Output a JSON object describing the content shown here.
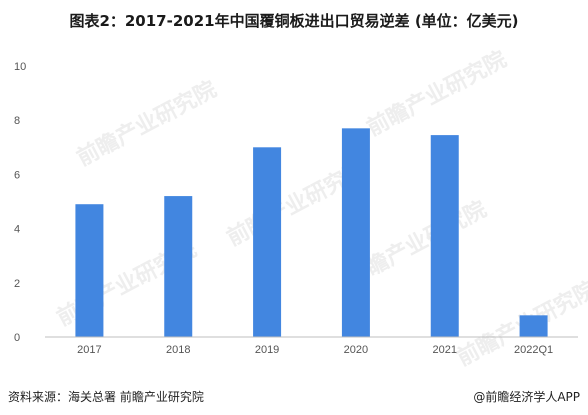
{
  "title": "图表2：2017-2021年中国覆铜板进出口贸易逆差 (单位：亿美元)",
  "footer": {
    "source": "资料来源：海关总署 前瞻产业研究院",
    "brand": "@前瞻经济学人APP"
  },
  "watermark": {
    "text": "前瞻产业研究院"
  },
  "colors": {
    "bar": "#4286e0",
    "axis": "#bfbfbf"
  },
  "chart_data": {
    "type": "bar",
    "categories": [
      "2017",
      "2018",
      "2019",
      "2020",
      "2021",
      "2022Q1"
    ],
    "values": [
      4.9,
      5.2,
      7.0,
      7.7,
      7.45,
      0.8
    ],
    "ylim": [
      0,
      10
    ],
    "yticks": [
      0,
      2,
      4,
      6,
      8,
      10
    ],
    "grid": false,
    "legend": "none"
  }
}
